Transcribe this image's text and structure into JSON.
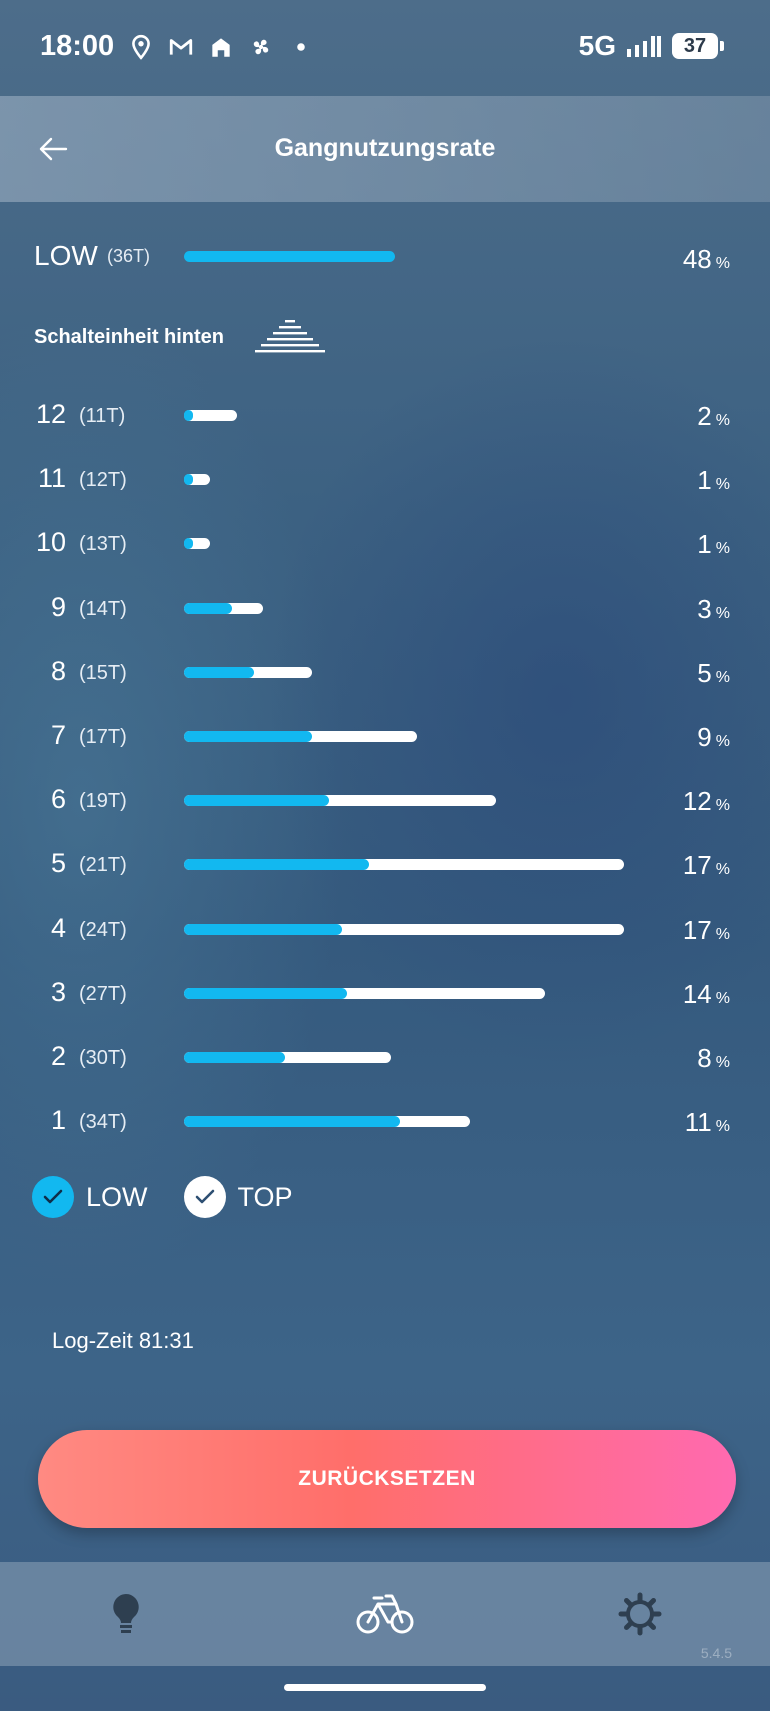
{
  "status_bar": {
    "time": "18:00",
    "network": "5G",
    "battery": "37"
  },
  "app_bar": {
    "title": "Gangnutzungsrate"
  },
  "front": {
    "label": "LOW",
    "teeth": "(36T)",
    "percent": "48",
    "unit": "%",
    "fill": 0.48
  },
  "rear": {
    "section_title": "Schalteinheit hinten",
    "gears": [
      {
        "gear": "12",
        "teeth": "(11T)",
        "percent": "2",
        "unit": "%",
        "low": 0.02,
        "total": 0.12
      },
      {
        "gear": "11",
        "teeth": "(12T)",
        "percent": "1",
        "unit": "%",
        "low": 0.02,
        "total": 0.06
      },
      {
        "gear": "10",
        "teeth": "(13T)",
        "percent": "1",
        "unit": "%",
        "low": 0.02,
        "total": 0.06
      },
      {
        "gear": "9",
        "teeth": "(14T)",
        "percent": "3",
        "unit": "%",
        "low": 0.11,
        "total": 0.18
      },
      {
        "gear": "8",
        "teeth": "(15T)",
        "percent": "5",
        "unit": "%",
        "low": 0.16,
        "total": 0.29
      },
      {
        "gear": "7",
        "teeth": "(17T)",
        "percent": "9",
        "unit": "%",
        "low": 0.29,
        "total": 0.53
      },
      {
        "gear": "6",
        "teeth": "(19T)",
        "percent": "12",
        "unit": "%",
        "low": 0.33,
        "total": 0.71
      },
      {
        "gear": "5",
        "teeth": "(21T)",
        "percent": "17",
        "unit": "%",
        "low": 0.42,
        "total": 1.0
      },
      {
        "gear": "4",
        "teeth": "(24T)",
        "percent": "17",
        "unit": "%",
        "low": 0.36,
        "total": 1.0
      },
      {
        "gear": "3",
        "teeth": "(27T)",
        "percent": "14",
        "unit": "%",
        "low": 0.37,
        "total": 0.82
      },
      {
        "gear": "2",
        "teeth": "(30T)",
        "percent": "8",
        "unit": "%",
        "low": 0.23,
        "total": 0.47
      },
      {
        "gear": "1",
        "teeth": "(34T)",
        "percent": "11",
        "unit": "%",
        "low": 0.49,
        "total": 0.65
      }
    ]
  },
  "legend": {
    "low_label": "LOW",
    "top_label": "TOP",
    "low_color": "#12b8f0",
    "top_color": "#ffffff"
  },
  "log_time": "Log-Zeit 81:31",
  "reset_button": "ZURÜCKSETZEN",
  "nav": {
    "items": [
      "lightbulb-icon",
      "bicycle-icon",
      "gear-icon"
    ]
  },
  "version": "5.4.5"
}
